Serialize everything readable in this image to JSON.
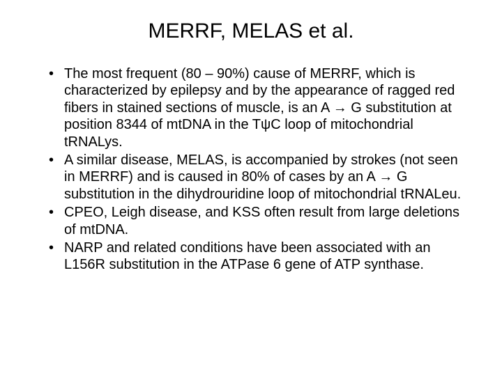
{
  "slide": {
    "title": "MERRF, MELAS et al.",
    "bullets": [
      "The most frequent (80 – 90%) cause of MERRF, which is characterized by epilepsy and by the appearance of ragged red fibers in stained sections of muscle, is an A → G substitution at position 8344 of mtDNA in the TψC loop of mitochondrial tRNALys.",
      "A similar disease, MELAS, is accompanied by strokes (not seen in MERRF) and is caused in 80% of cases by an A → G substitution in the dihydrouridine loop of mitochondrial tRNALeu.",
      "CPEO, Leigh disease, and KSS often result from large deletions of mtDNA.",
      "NARP and related conditions have been associated with an L156R substitution in the ATPase 6 gene of ATP synthase."
    ],
    "styling": {
      "background_color": "#ffffff",
      "text_color": "#000000",
      "title_fontsize": 30,
      "title_fontweight": "normal",
      "body_fontsize": 20,
      "font_family": "Arial",
      "bullet_marker": "•",
      "line_height": 1.22,
      "slide_width": 720,
      "slide_height": 540
    }
  }
}
